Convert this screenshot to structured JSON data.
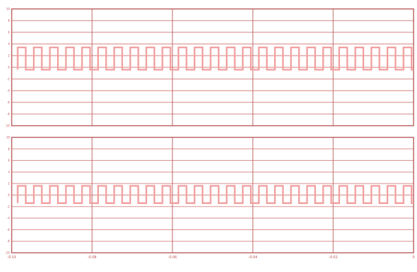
{
  "chart_data": [
    {
      "type": "line",
      "title": "",
      "xlabel": "",
      "ylabel": "",
      "xlim": [
        -0.1,
        0
      ],
      "ylim": [
        -10,
        10
      ],
      "y_ticks": [
        -10,
        -8,
        -6,
        -4,
        -2,
        0,
        2,
        4,
        6,
        8,
        10
      ],
      "y_tick_labels": [
        "-10",
        "-8",
        "-6",
        "-4",
        "-2",
        "0",
        "2",
        "4",
        "6",
        "8",
        "10"
      ],
      "grid": true,
      "series": [
        {
          "period": 0.004,
          "low": -0.4,
          "high": 3.4,
          "duty": 0.5,
          "start": -0.0985,
          "end": 0.0
        }
      ]
    },
    {
      "type": "line",
      "title": "",
      "xlabel": "",
      "ylabel": "",
      "xlim": [
        -0.1,
        0
      ],
      "ylim": [
        -10,
        10
      ],
      "x_ticks": [
        -0.1,
        -0.08,
        -0.06,
        -0.04,
        -0.02,
        0
      ],
      "x_tick_labels": [
        "-0.10",
        "-0.08",
        "-0.06",
        "-0.04",
        "-0.02",
        "0"
      ],
      "y_ticks": [
        -10,
        -8,
        -6,
        -4,
        -2,
        0,
        2,
        4,
        6,
        8,
        10
      ],
      "y_tick_labels": [
        "-10",
        "-8",
        "-6",
        "-4",
        "-2",
        "0",
        "2",
        "4",
        "6",
        "8",
        "10"
      ],
      "grid": true,
      "series": [
        {
          "period": 0.004,
          "low": -1.4,
          "high": 1.6,
          "duty": 0.5,
          "start": -0.0985,
          "end": 0.0
        }
      ]
    }
  ],
  "footer": ""
}
